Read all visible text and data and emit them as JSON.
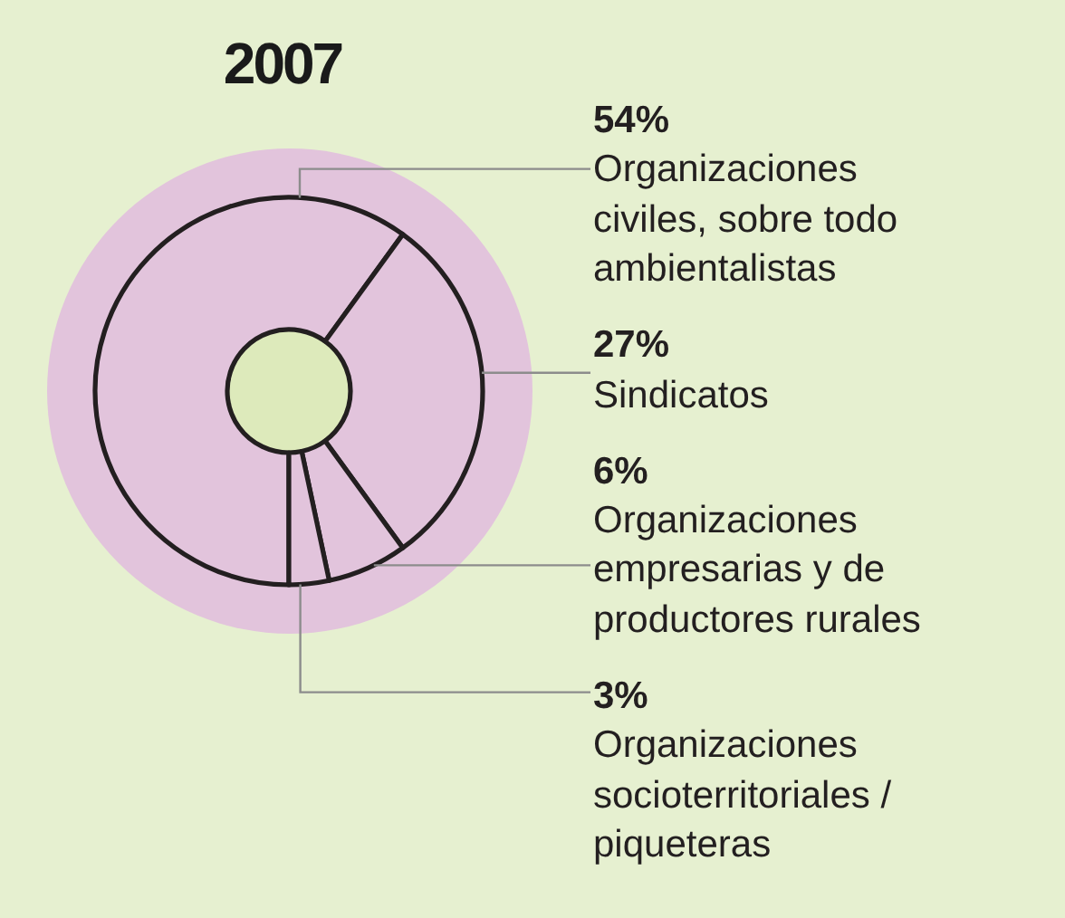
{
  "chart_data": {
    "type": "donut",
    "title": "2007",
    "categories": [
      "Organizaciones civiles, sobre todo ambientalistas",
      "Sindicatos",
      "Organizaciones empresarias y de productores rurales",
      "Organizaciones socioterritoriales / piqueteras"
    ],
    "values": [
      54,
      27,
      6,
      3
    ],
    "value_labels": [
      "54%",
      "27%",
      "6%",
      "3%"
    ],
    "colors": [
      "#e2c4dc",
      "#e2c4dc",
      "#e2c4dc",
      "#e2c4dc"
    ]
  }
}
